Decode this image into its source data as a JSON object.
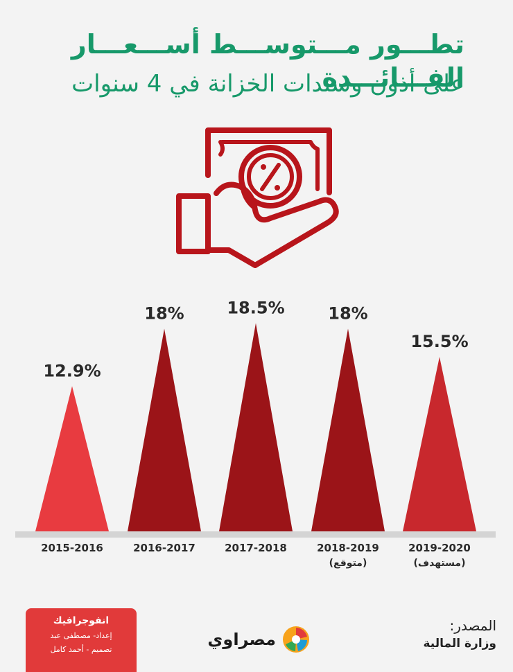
{
  "header": {
    "title": "تطـــور مـــتوســـط أســـعـــار الفـــائـــدة",
    "subtitle": "على أذون وسندات الخزانة في 4 سنوات"
  },
  "icons": {
    "hero": "hand-holding-percent-banknote-icon",
    "brand": "masrawy-logo-icon"
  },
  "colors": {
    "accent": "#17996a",
    "dark_bar": "#9b1418",
    "light_bar": "#e83b40",
    "mid_bar": "#c8282d"
  },
  "chart_data": {
    "type": "bar",
    "shape": "triangle",
    "title": "",
    "xlabel": "",
    "ylabel": "",
    "categories": [
      "2015-2016",
      "2016-2017",
      "2017-2018",
      "2018-2019",
      "2019-2020"
    ],
    "category_notes": [
      "",
      "",
      "",
      "(متوقع)",
      "(مستهدف)"
    ],
    "values": [
      12.9,
      18,
      18.5,
      18,
      15.5
    ],
    "value_labels": [
      "12.9%",
      "18%",
      "18.5%",
      "18%",
      "15.5%"
    ],
    "bar_colors": [
      "#e83b40",
      "#9b1418",
      "#9b1418",
      "#9b1418",
      "#c8282d"
    ],
    "ylim": [
      0,
      20
    ],
    "grid": false,
    "legend": "none"
  },
  "footer": {
    "source_label": "المصدر:",
    "source_value": "وزارة المالية",
    "brand_name": "مصراوي",
    "credits_title": "انفوجرافيك",
    "credits_line1": "إعداد- مصطفى عبد",
    "credits_line2": "تصميم - أحمد كامل"
  }
}
